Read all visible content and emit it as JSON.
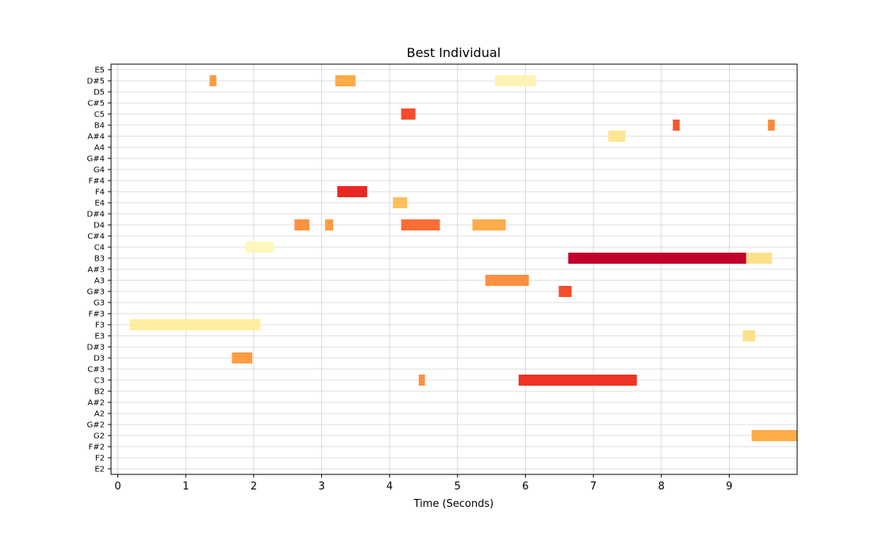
{
  "chart_data": {
    "type": "bar",
    "title": "Best Individual",
    "xlabel": "Time (Seconds)",
    "ylabel": "",
    "xlim": [
      -0.1,
      10.0
    ],
    "x_ticks": [
      0,
      1,
      2,
      3,
      4,
      5,
      6,
      7,
      8,
      9
    ],
    "grid": true,
    "pitches": [
      "E2",
      "F2",
      "F#2",
      "G2",
      "G#2",
      "A2",
      "A#2",
      "B2",
      "C3",
      "C#3",
      "D3",
      "D#3",
      "E3",
      "F3",
      "F#3",
      "G3",
      "G#3",
      "A3",
      "A#3",
      "B3",
      "C4",
      "C#4",
      "D4",
      "D#4",
      "E4",
      "F4",
      "F#4",
      "G4",
      "G#4",
      "A4",
      "A#4",
      "B4",
      "C5",
      "C#5",
      "D5",
      "D#5",
      "E5"
    ],
    "notes": [
      {
        "pitch": "D#5",
        "start": 1.35,
        "end": 1.45,
        "color": "#fd9d43"
      },
      {
        "pitch": "D#5",
        "start": 3.2,
        "end": 3.5,
        "color": "#feab49"
      },
      {
        "pitch": "D#5",
        "start": 5.55,
        "end": 6.15,
        "color": "#fff3b3"
      },
      {
        "pitch": "C5",
        "start": 4.17,
        "end": 4.38,
        "color": "#f84a2c"
      },
      {
        "pitch": "B4",
        "start": 8.17,
        "end": 8.27,
        "color": "#f9562f"
      },
      {
        "pitch": "B4",
        "start": 9.57,
        "end": 9.67,
        "color": "#fc8a3d"
      },
      {
        "pitch": "A#4",
        "start": 7.22,
        "end": 7.47,
        "color": "#fee592"
      },
      {
        "pitch": "F4",
        "start": 3.23,
        "end": 3.67,
        "color": "#e92823"
      },
      {
        "pitch": "E4",
        "start": 4.05,
        "end": 4.26,
        "color": "#fec05c"
      },
      {
        "pitch": "D4",
        "start": 2.6,
        "end": 2.82,
        "color": "#fd9141"
      },
      {
        "pitch": "D4",
        "start": 3.05,
        "end": 3.17,
        "color": "#fd9d43"
      },
      {
        "pitch": "D4",
        "start": 4.17,
        "end": 4.74,
        "color": "#fc6e35"
      },
      {
        "pitch": "D4",
        "start": 5.22,
        "end": 5.71,
        "color": "#feab49"
      },
      {
        "pitch": "C4",
        "start": 1.88,
        "end": 2.3,
        "color": "#fff7bc"
      },
      {
        "pitch": "B3",
        "start": 6.63,
        "end": 9.25,
        "color": "#c1002b"
      },
      {
        "pitch": "B3",
        "start": 9.25,
        "end": 9.63,
        "color": "#fee08b"
      },
      {
        "pitch": "A3",
        "start": 5.41,
        "end": 6.05,
        "color": "#fd8f40"
      },
      {
        "pitch": "G#3",
        "start": 6.49,
        "end": 6.68,
        "color": "#f64d2c"
      },
      {
        "pitch": "F3",
        "start": 0.18,
        "end": 2.1,
        "color": "#ffeda0"
      },
      {
        "pitch": "E3",
        "start": 9.2,
        "end": 9.38,
        "color": "#fee08b"
      },
      {
        "pitch": "D3",
        "start": 1.68,
        "end": 1.98,
        "color": "#fd9d43"
      },
      {
        "pitch": "C3",
        "start": 4.43,
        "end": 4.52,
        "color": "#fd8f40"
      },
      {
        "pitch": "C3",
        "start": 5.9,
        "end": 7.64,
        "color": "#ef3324"
      },
      {
        "pitch": "G2",
        "start": 9.33,
        "end": 10.0,
        "color": "#feab49"
      }
    ]
  }
}
